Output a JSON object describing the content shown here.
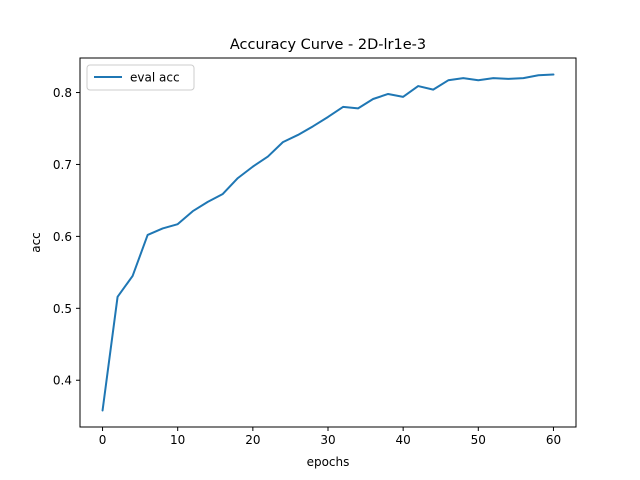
{
  "chart_data": {
    "type": "line",
    "title": "Accuracy Curve - 2D-lr1e-3",
    "xlabel": "epochs",
    "ylabel": "acc",
    "xlim": [
      -3,
      63
    ],
    "ylim": [
      0.335,
      0.848
    ],
    "xticks": [
      0,
      10,
      20,
      30,
      40,
      50,
      60
    ],
    "yticks": [
      0.4,
      0.5,
      0.6,
      0.7,
      0.8
    ],
    "grid": false,
    "legend_position": "upper-left",
    "series": [
      {
        "name": "eval acc",
        "color": "#1f77b4",
        "x": [
          0,
          2,
          4,
          6,
          8,
          10,
          12,
          14,
          16,
          18,
          20,
          22,
          24,
          26,
          28,
          30,
          32,
          34,
          36,
          38,
          40,
          42,
          44,
          46,
          48,
          50,
          52,
          54,
          56,
          58,
          60
        ],
        "y": [
          0.358,
          0.516,
          0.545,
          0.602,
          0.611,
          0.617,
          0.635,
          0.648,
          0.659,
          0.681,
          0.697,
          0.711,
          0.731,
          0.741,
          0.753,
          0.766,
          0.78,
          0.778,
          0.791,
          0.798,
          0.794,
          0.809,
          0.804,
          0.817,
          0.82,
          0.817,
          0.82,
          0.819,
          0.82,
          0.824,
          0.825
        ]
      }
    ]
  }
}
